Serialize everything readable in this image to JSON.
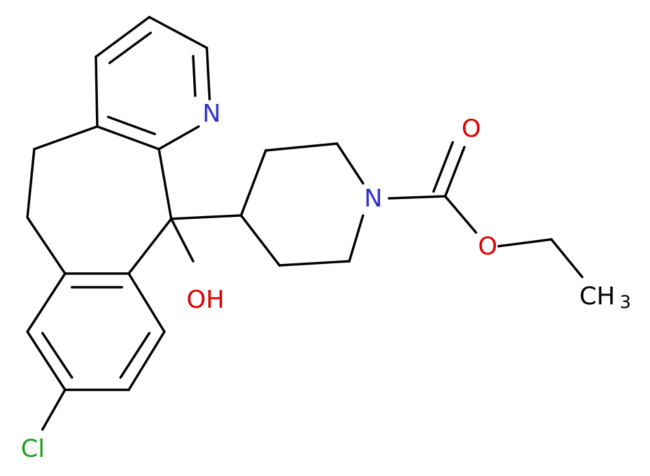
{
  "atoms": [
    {
      "label": "N"
    },
    {
      "label": "N"
    },
    {
      "label": "O"
    },
    {
      "label": "O"
    },
    {
      "label": "CH",
      "subscript": "3"
    },
    {
      "label": "OH"
    },
    {
      "label": "Cl"
    }
  ]
}
